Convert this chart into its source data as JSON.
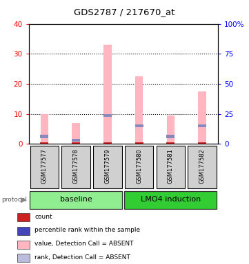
{
  "title": "GDS2787 / 217670_at",
  "samples": [
    "GSM177577",
    "GSM177578",
    "GSM177579",
    "GSM177580",
    "GSM177581",
    "GSM177582"
  ],
  "pink_bar_values": [
    10.0,
    7.0,
    33.0,
    22.5,
    9.5,
    17.5
  ],
  "blue_marker_values": [
    2.5,
    1.2,
    9.5,
    6.0,
    2.5,
    6.0
  ],
  "red_marker_values": [
    1.0,
    1.0,
    1.0,
    1.0,
    1.0,
    1.0
  ],
  "ylim_left": [
    0,
    40
  ],
  "yticks_left": [
    0,
    10,
    20,
    30,
    40
  ],
  "ytick_labels_right": [
    "0",
    "25",
    "50",
    "75",
    "100%"
  ],
  "groups": [
    {
      "label": "baseline",
      "start": 0,
      "end": 3,
      "color": "#90EE90"
    },
    {
      "label": "LMO4 induction",
      "start": 3,
      "end": 6,
      "color": "#32CD32"
    }
  ],
  "pink_color": "#FFB6C1",
  "blue_color": "#8888BB",
  "red_color": "#CC2222",
  "bg_color": "#FFFFFF",
  "legend_items": [
    {
      "color": "#CC2222",
      "label": "count"
    },
    {
      "color": "#4444BB",
      "label": "percentile rank within the sample"
    },
    {
      "color": "#FFB6C1",
      "label": "value, Detection Call = ABSENT"
    },
    {
      "color": "#BBBBDD",
      "label": "rank, Detection Call = ABSENT"
    }
  ]
}
